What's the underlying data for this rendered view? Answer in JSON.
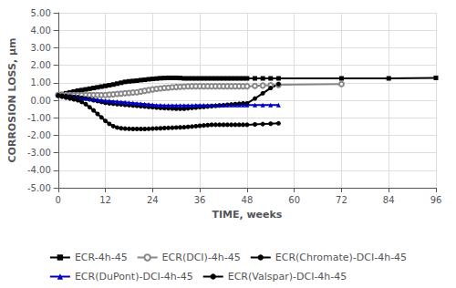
{
  "chart_data": {
    "type": "line",
    "x_label": "TIME, weeks",
    "y_label": "CORROSION LOSS, μm",
    "xlim": [
      0,
      96
    ],
    "ylim": [
      -5.0,
      5.0
    ],
    "xticks": [
      0,
      12,
      24,
      36,
      48,
      60,
      72,
      84,
      96
    ],
    "yticks": [
      {
        "value": -5.0,
        "label": "-5.00"
      },
      {
        "value": -4.0,
        "label": "-4.00"
      },
      {
        "value": -3.0,
        "label": "-3.00"
      },
      {
        "value": -2.0,
        "label": "-2.00"
      },
      {
        "value": -1.0,
        "label": "-1.00"
      },
      {
        "value": 0.0,
        "label": "0.00"
      },
      {
        "value": 1.0,
        "label": "1.00"
      },
      {
        "value": 2.0,
        "label": "2.00"
      },
      {
        "value": 3.0,
        "label": "3.00"
      },
      {
        "value": 4.0,
        "label": "4.00"
      },
      {
        "value": 5.0,
        "label": "5.00"
      }
    ],
    "grid": true,
    "legend": "bottom",
    "series": [
      {
        "name": "ECR-4h-45",
        "color": "#000000",
        "marker": "square",
        "line_style": "solid",
        "x": [
          0,
          1,
          2,
          3,
          4,
          5,
          6,
          7,
          8,
          9,
          10,
          11,
          12,
          13,
          14,
          15,
          16,
          17,
          18,
          19,
          20,
          21,
          22,
          23,
          24,
          25,
          26,
          27,
          28,
          29,
          30,
          31,
          32,
          33,
          34,
          35,
          36,
          37,
          38,
          39,
          40,
          41,
          42,
          43,
          44,
          45,
          46,
          47,
          48,
          50,
          52,
          54,
          56,
          72,
          84,
          96
        ],
        "values": [
          0.3,
          0.35,
          0.4,
          0.45,
          0.5,
          0.55,
          0.58,
          0.62,
          0.66,
          0.7,
          0.74,
          0.78,
          0.82,
          0.86,
          0.9,
          0.95,
          1.0,
          1.05,
          1.08,
          1.1,
          1.12,
          1.15,
          1.17,
          1.2,
          1.22,
          1.24,
          1.26,
          1.27,
          1.28,
          1.28,
          1.28,
          1.27,
          1.25,
          1.25,
          1.25,
          1.25,
          1.25,
          1.25,
          1.25,
          1.25,
          1.25,
          1.25,
          1.25,
          1.25,
          1.25,
          1.25,
          1.25,
          1.25,
          1.25,
          1.25,
          1.25,
          1.25,
          1.25,
          1.25,
          1.25,
          1.28
        ]
      },
      {
        "name": "ECR(DCI)-4h-45",
        "color": "#888888",
        "marker": "hollow_circle",
        "line_style": "solid",
        "x": [
          0,
          1,
          2,
          3,
          4,
          5,
          6,
          7,
          8,
          9,
          10,
          11,
          12,
          13,
          14,
          15,
          16,
          17,
          18,
          19,
          20,
          21,
          22,
          23,
          24,
          25,
          26,
          27,
          28,
          29,
          30,
          31,
          32,
          33,
          34,
          35,
          36,
          37,
          38,
          39,
          40,
          41,
          42,
          43,
          44,
          45,
          46,
          47,
          48,
          50,
          52,
          54,
          56,
          72
        ],
        "values": [
          0.3,
          0.3,
          0.3,
          0.3,
          0.3,
          0.3,
          0.3,
          0.3,
          0.3,
          0.3,
          0.3,
          0.3,
          0.3,
          0.32,
          0.34,
          0.36,
          0.38,
          0.4,
          0.42,
          0.44,
          0.46,
          0.5,
          0.54,
          0.58,
          0.62,
          0.65,
          0.68,
          0.7,
          0.72,
          0.74,
          0.76,
          0.77,
          0.78,
          0.79,
          0.8,
          0.8,
          0.8,
          0.8,
          0.8,
          0.8,
          0.8,
          0.8,
          0.8,
          0.8,
          0.8,
          0.8,
          0.8,
          0.8,
          0.8,
          0.82,
          0.84,
          0.86,
          0.88,
          0.92
        ]
      },
      {
        "name": "ECR(Chromate)-DCI-4h-45",
        "color": "#000000",
        "marker": "circle",
        "line_style": "solid",
        "x": [
          0,
          1,
          2,
          3,
          4,
          5,
          6,
          7,
          8,
          9,
          10,
          11,
          12,
          13,
          14,
          15,
          16,
          17,
          18,
          19,
          20,
          21,
          22,
          23,
          24,
          25,
          26,
          27,
          28,
          29,
          30,
          31,
          32,
          33,
          34,
          35,
          36,
          37,
          38,
          39,
          40,
          41,
          42,
          43,
          44,
          45,
          46,
          47,
          48,
          50,
          52,
          54,
          56
        ],
        "values": [
          0.28,
          0.26,
          0.24,
          0.22,
          0.2,
          0.18,
          0.14,
          0.1,
          0.05,
          0.0,
          -0.05,
          -0.1,
          -0.15,
          -0.18,
          -0.2,
          -0.22,
          -0.24,
          -0.26,
          -0.28,
          -0.3,
          -0.32,
          -0.34,
          -0.36,
          -0.38,
          -0.4,
          -0.42,
          -0.44,
          -0.45,
          -0.46,
          -0.47,
          -0.48,
          -0.48,
          -0.48,
          -0.46,
          -0.44,
          -0.42,
          -0.4,
          -0.38,
          -0.36,
          -0.34,
          -0.32,
          -0.3,
          -0.28,
          -0.26,
          -0.24,
          -0.22,
          -0.2,
          -0.18,
          -0.18,
          0.1,
          0.4,
          0.7,
          0.92
        ]
      },
      {
        "name": "ECR(DuPont)-DCI-4h-45",
        "color": "#0000bb",
        "marker": "triangle",
        "line_style": "solid",
        "x": [
          0,
          1,
          2,
          3,
          4,
          5,
          6,
          7,
          8,
          9,
          10,
          11,
          12,
          13,
          14,
          15,
          16,
          17,
          18,
          19,
          20,
          21,
          22,
          23,
          24,
          25,
          26,
          27,
          28,
          29,
          30,
          31,
          32,
          33,
          34,
          35,
          36,
          37,
          38,
          39,
          40,
          41,
          42,
          43,
          44,
          45,
          46,
          47,
          48,
          50,
          52,
          54,
          56
        ],
        "values": [
          0.28,
          0.25,
          0.22,
          0.2,
          0.18,
          0.15,
          0.12,
          0.1,
          0.08,
          0.05,
          0.02,
          0.0,
          -0.02,
          -0.04,
          -0.06,
          -0.08,
          -0.1,
          -0.12,
          -0.14,
          -0.16,
          -0.18,
          -0.2,
          -0.22,
          -0.24,
          -0.26,
          -0.28,
          -0.29,
          -0.3,
          -0.3,
          -0.3,
          -0.3,
          -0.3,
          -0.3,
          -0.3,
          -0.3,
          -0.29,
          -0.28,
          -0.28,
          -0.28,
          -0.28,
          -0.28,
          -0.28,
          -0.27,
          -0.27,
          -0.27,
          -0.27,
          -0.27,
          -0.27,
          -0.27,
          -0.27,
          -0.27,
          -0.27,
          -0.27
        ]
      },
      {
        "name": "ECR(Valspar)-DCI-4h-45",
        "color": "#000000",
        "marker": "circle",
        "line_style": "solid",
        "x": [
          0,
          1,
          2,
          3,
          4,
          5,
          6,
          7,
          8,
          9,
          10,
          11,
          12,
          13,
          14,
          15,
          16,
          17,
          18,
          19,
          20,
          21,
          22,
          23,
          24,
          25,
          26,
          27,
          28,
          29,
          30,
          31,
          32,
          33,
          34,
          35,
          36,
          37,
          38,
          39,
          40,
          41,
          42,
          43,
          44,
          45,
          46,
          47,
          48,
          50,
          52,
          54,
          56
        ],
        "values": [
          0.25,
          0.2,
          0.15,
          0.1,
          0.05,
          0.0,
          -0.1,
          -0.22,
          -0.4,
          -0.58,
          -0.78,
          -0.98,
          -1.18,
          -1.35,
          -1.48,
          -1.56,
          -1.6,
          -1.62,
          -1.63,
          -1.64,
          -1.64,
          -1.64,
          -1.64,
          -1.63,
          -1.62,
          -1.61,
          -1.6,
          -1.59,
          -1.58,
          -1.57,
          -1.56,
          -1.55,
          -1.54,
          -1.52,
          -1.5,
          -1.48,
          -1.46,
          -1.44,
          -1.42,
          -1.4,
          -1.4,
          -1.4,
          -1.4,
          -1.4,
          -1.4,
          -1.4,
          -1.4,
          -1.4,
          -1.4,
          -1.38,
          -1.36,
          -1.34,
          -1.32
        ]
      }
    ]
  }
}
